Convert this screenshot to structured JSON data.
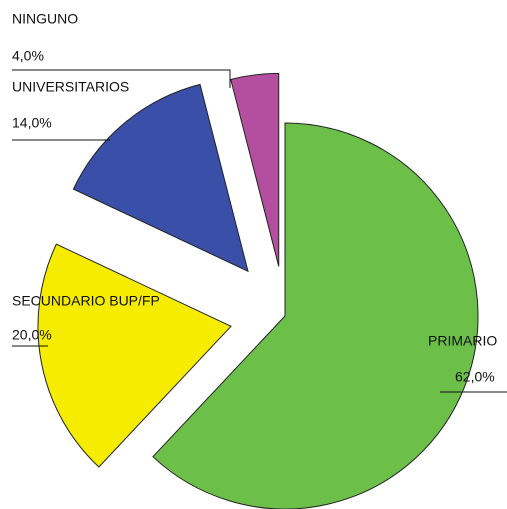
{
  "chart_data": {
    "type": "pie",
    "categories": [
      "PRIMARIO",
      "SECUNDARIO BUP/FP",
      "UNIVERSITARIOS",
      "NINGUNO"
    ],
    "values": [
      62,
      20,
      14,
      4
    ],
    "value_labels": [
      "62,0%",
      "20,0%",
      "14,0%",
      "4,0%"
    ],
    "colors": [
      "#6cc04a",
      "#f5ec00",
      "#3a4fa8",
      "#b44fa0"
    ]
  }
}
